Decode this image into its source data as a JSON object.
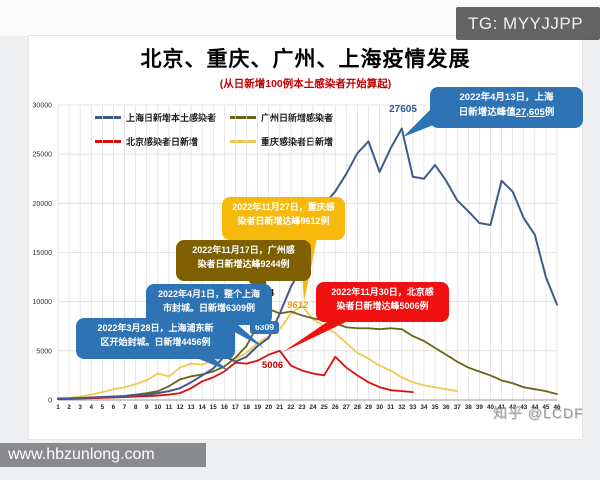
{
  "watermarks": {
    "tg": "TG: MYYJJPP",
    "site": "www.hbzunlong.com",
    "zhihu": "知乎 @LCDF"
  },
  "colors": {
    "shanghai_line": "#42598C",
    "guangzhou_line": "#6B6418",
    "beijing_line": "#D90F0F",
    "chongqing_line": "#EECB4F",
    "callout_blue": "#2E74B5",
    "callout_yellow": "#F6B90C",
    "callout_olive": "#7F6000",
    "callout_red": "#F11010",
    "subtitle_red": "#C00000"
  },
  "chart_data": {
    "type": "line",
    "title": "北京、重庆、广州、上海疫情发展",
    "subtitle": "(从日新增100例本土感染者开始算起)",
    "xlabel": "",
    "ylabel": "",
    "ylim": [
      0,
      30000
    ],
    "y_ticks": [
      0,
      5000,
      10000,
      15000,
      20000,
      25000,
      30000
    ],
    "grid": true,
    "legend_position": "top",
    "x": [
      1,
      2,
      3,
      4,
      5,
      6,
      7,
      8,
      9,
      10,
      11,
      12,
      13,
      14,
      15,
      16,
      17,
      18,
      19,
      20,
      21,
      22,
      23,
      24,
      25,
      26,
      27,
      28,
      29,
      30,
      31,
      32,
      33,
      34,
      35,
      36,
      37,
      38,
      39,
      40,
      41,
      42,
      43,
      44,
      45,
      46
    ],
    "series": [
      {
        "key": "shanghai",
        "name": "上海日新增本土感染者",
        "color": "#42598C",
        "width": 2,
        "values": [
          150,
          170,
          200,
          260,
          300,
          350,
          400,
          480,
          550,
          700,
          900,
          1200,
          1800,
          2500,
          3200,
          4456,
          3900,
          4400,
          5500,
          6309,
          8800,
          11500,
          13500,
          16500,
          19900,
          21200,
          23000,
          25100,
          26300,
          23200,
          25600,
          27605,
          22700,
          22500,
          23900,
          22300,
          20300,
          19200,
          18000,
          17800,
          22300,
          21200,
          18500,
          16800,
          12500,
          9700
        ]
      },
      {
        "key": "guangzhou",
        "name": "广州日新增感染者",
        "color": "#6B6418",
        "width": 1.8,
        "values": [
          100,
          130,
          160,
          200,
          250,
          320,
          420,
          550,
          700,
          900,
          1400,
          2100,
          2400,
          2600,
          2900,
          3400,
          4300,
          5500,
          7600,
          9244,
          8800,
          9000,
          8600,
          8300,
          8100,
          7800,
          7400,
          7300,
          7300,
          7200,
          7300,
          7200,
          6500,
          6000,
          5300,
          4600,
          3900,
          3300,
          2900,
          2500,
          2000,
          1700,
          1300,
          1100,
          900,
          600
        ]
      },
      {
        "key": "beijing",
        "name": "北京感染者日新增",
        "color": "#D90F0F",
        "width": 1.8,
        "values": [
          100,
          120,
          150,
          180,
          220,
          260,
          300,
          350,
          400,
          450,
          550,
          700,
          1200,
          1900,
          2300,
          2900,
          3800,
          3700,
          4000,
          4600,
          5006,
          3500,
          3000,
          2700,
          2500,
          4400,
          3300,
          2500,
          1800,
          1300,
          1000,
          900,
          800,
          null,
          null,
          null,
          null,
          null,
          null,
          null,
          null,
          null,
          null,
          null,
          null,
          null
        ]
      },
      {
        "key": "chongqing",
        "name": "重庆感染者日新增",
        "color": "#EECB4F",
        "width": 1.8,
        "values": [
          120,
          200,
          350,
          550,
          800,
          1100,
          1300,
          1600,
          2000,
          2700,
          2400,
          3300,
          3700,
          3600,
          4000,
          4300,
          4200,
          4800,
          5800,
          6500,
          7200,
          8800,
          9612,
          8200,
          7500,
          6800,
          5800,
          4800,
          4200,
          3500,
          3000,
          2300,
          1800,
          1500,
          1300,
          1100,
          900,
          null,
          null,
          null,
          null,
          null,
          null,
          null,
          null,
          null
        ]
      }
    ],
    "point_labels": {
      "shanghai_peak": "27605",
      "guangzhou_peak": "9244",
      "chongqing_peak": "9612",
      "shanghai_apr1": "6309",
      "shanghai_mar28": "4456",
      "beijing_peak": "5006"
    },
    "annotations": [
      "2022年4月13日，上海日新增达峰值27,605例",
      "2022年11月27日，重庆感染者日新增达峰9612例",
      "2022年11月17日，广州感染者日新增达峰9244例",
      "2022年4月1日，整个上海市封城。日新增6309例",
      "2022年3月28日，上海浦东新区开始封城。日新增4456例",
      "2022年11月30日，北京感染者日新增达峰5006例"
    ]
  },
  "callouts": {
    "shanghai_peak": {
      "color": "#2E74B5",
      "line1": "2022年4月13日，上海",
      "line2_pre": "日新增达峰值",
      "line2_value": "27,605",
      "line2_suf": "例"
    },
    "chongqing_peak": {
      "color": "#F6B90C",
      "line1": "2022年11月27日，重庆感",
      "line2": "染者日新增达峰9612例"
    },
    "guangzhou_peak": {
      "color": "#7F6000",
      "line1": "2022年11月17日，广州感",
      "line2": "染者日新增达峰9244例"
    },
    "shanghai_lockdown": {
      "color": "#2E74B5",
      "line1": "2022年4月1日，整个上海",
      "line2": "市封城。日新增6309例"
    },
    "pudong_lockdown": {
      "color": "#2E74B5",
      "line1": "2022年3月28日，上海浦东新",
      "line2": "区开始封城。日新增4456例"
    },
    "beijing_peak": {
      "color": "#F11010",
      "line1": "2022年11月30日，北京感",
      "line2": "染者日新增达峰5006例"
    }
  }
}
